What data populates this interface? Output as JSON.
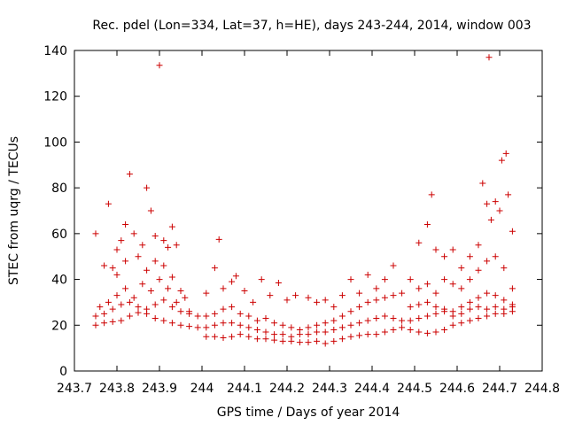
{
  "chart_data": {
    "type": "scatter",
    "title": "Rec. pdel (Lon=334, Lat=37, h=HE), days 243-244, 2014, window 003",
    "xlabel": "GPS time / Days of year 2014",
    "ylabel": "STEC from uqrg / TECUs",
    "xlim": [
      243.7,
      244.8
    ],
    "ylim": [
      0,
      140
    ],
    "xticks": [
      "243.7",
      "243.8",
      "243.9",
      "244",
      "244.1",
      "244.2",
      "244.3",
      "244.4",
      "244.5",
      "244.6",
      "244.7",
      "244.8"
    ],
    "yticks": [
      "0",
      "20",
      "40",
      "60",
      "80",
      "100",
      "120",
      "140"
    ],
    "grid": false,
    "legend": "none",
    "marker": "+",
    "color": "#cc0000",
    "series": [
      {
        "points": [
          [
            243.75,
            60
          ],
          [
            243.77,
            46
          ],
          [
            243.78,
            73
          ],
          [
            243.79,
            45
          ],
          [
            243.8,
            53
          ],
          [
            243.81,
            57
          ],
          [
            243.82,
            64
          ],
          [
            243.83,
            86
          ],
          [
            243.84,
            60
          ],
          [
            243.86,
            55
          ],
          [
            243.87,
            80
          ],
          [
            243.88,
            70
          ],
          [
            243.89,
            59
          ],
          [
            243.9,
            133.5
          ],
          [
            243.91,
            57
          ],
          [
            243.92,
            54
          ],
          [
            243.93,
            63
          ],
          [
            243.94,
            55
          ],
          [
            243.8,
            42
          ],
          [
            243.82,
            48
          ],
          [
            243.85,
            50
          ],
          [
            243.87,
            44
          ],
          [
            243.89,
            48
          ],
          [
            243.91,
            46
          ],
          [
            243.93,
            41
          ],
          [
            243.95,
            35
          ],
          [
            243.76,
            28
          ],
          [
            243.78,
            30
          ],
          [
            243.8,
            33
          ],
          [
            243.82,
            36
          ],
          [
            243.84,
            32
          ],
          [
            243.86,
            38
          ],
          [
            243.88,
            35
          ],
          [
            243.9,
            40
          ],
          [
            243.92,
            36
          ],
          [
            243.94,
            30
          ],
          [
            243.96,
            32
          ],
          [
            243.97,
            26
          ],
          [
            243.75,
            24
          ],
          [
            243.77,
            25
          ],
          [
            243.79,
            27
          ],
          [
            243.81,
            29
          ],
          [
            243.83,
            30
          ],
          [
            243.85,
            28
          ],
          [
            243.87,
            27
          ],
          [
            243.89,
            29
          ],
          [
            243.91,
            31
          ],
          [
            243.93,
            28
          ],
          [
            243.95,
            26
          ],
          [
            243.97,
            25
          ],
          [
            243.99,
            24
          ],
          [
            243.75,
            20
          ],
          [
            243.77,
            21
          ],
          [
            243.79,
            21.5
          ],
          [
            243.81,
            22
          ],
          [
            243.83,
            24
          ],
          [
            243.85,
            25.5
          ],
          [
            243.87,
            25
          ],
          [
            243.89,
            23
          ],
          [
            243.91,
            22
          ],
          [
            243.93,
            21
          ],
          [
            243.95,
            20
          ],
          [
            243.97,
            19.5
          ],
          [
            243.99,
            19
          ],
          [
            244.01,
            34
          ],
          [
            244.03,
            45
          ],
          [
            244.04,
            57.5
          ],
          [
            244.05,
            36
          ],
          [
            244.07,
            39
          ],
          [
            244.08,
            41.5
          ],
          [
            244.1,
            35
          ],
          [
            244.12,
            30
          ],
          [
            244.14,
            40
          ],
          [
            244.16,
            33
          ],
          [
            244.18,
            38.5
          ],
          [
            244.2,
            31
          ],
          [
            244.22,
            33
          ],
          [
            244.25,
            32
          ],
          [
            244.27,
            30
          ],
          [
            244.29,
            31
          ],
          [
            244.31,
            28
          ],
          [
            244.33,
            33
          ],
          [
            244.35,
            40
          ],
          [
            244.37,
            34
          ],
          [
            244.39,
            42
          ],
          [
            244.41,
            36
          ],
          [
            244.43,
            40
          ],
          [
            244.45,
            46
          ],
          [
            244.01,
            24
          ],
          [
            244.03,
            25
          ],
          [
            244.05,
            27
          ],
          [
            244.07,
            28
          ],
          [
            244.09,
            25
          ],
          [
            244.11,
            24
          ],
          [
            244.13,
            22
          ],
          [
            244.15,
            23
          ],
          [
            244.17,
            21
          ],
          [
            244.19,
            20
          ],
          [
            244.21,
            19
          ],
          [
            244.23,
            18
          ],
          [
            244.25,
            19
          ],
          [
            244.27,
            20
          ],
          [
            244.29,
            21
          ],
          [
            244.31,
            22
          ],
          [
            244.33,
            24
          ],
          [
            244.35,
            26
          ],
          [
            244.37,
            28
          ],
          [
            244.39,
            30
          ],
          [
            244.41,
            31
          ],
          [
            244.43,
            32
          ],
          [
            244.45,
            33
          ],
          [
            244.47,
            34
          ],
          [
            244.01,
            19
          ],
          [
            244.03,
            20
          ],
          [
            244.05,
            21
          ],
          [
            244.07,
            21
          ],
          [
            244.09,
            20
          ],
          [
            244.11,
            19
          ],
          [
            244.13,
            18
          ],
          [
            244.15,
            17
          ],
          [
            244.17,
            16
          ],
          [
            244.19,
            16
          ],
          [
            244.21,
            15
          ],
          [
            244.23,
            16
          ],
          [
            244.25,
            16
          ],
          [
            244.27,
            17
          ],
          [
            244.29,
            17
          ],
          [
            244.31,
            18
          ],
          [
            244.33,
            19
          ],
          [
            244.35,
            20
          ],
          [
            244.37,
            21
          ],
          [
            244.39,
            22
          ],
          [
            244.41,
            23
          ],
          [
            244.43,
            24
          ],
          [
            244.45,
            23
          ],
          [
            244.47,
            22
          ],
          [
            244.01,
            15
          ],
          [
            244.03,
            15
          ],
          [
            244.05,
            14.5
          ],
          [
            244.07,
            15
          ],
          [
            244.09,
            16
          ],
          [
            244.11,
            15
          ],
          [
            244.13,
            14
          ],
          [
            244.15,
            14
          ],
          [
            244.17,
            13.5
          ],
          [
            244.19,
            13
          ],
          [
            244.21,
            13
          ],
          [
            244.23,
            12.5
          ],
          [
            244.25,
            12.5
          ],
          [
            244.27,
            13
          ],
          [
            244.29,
            12
          ],
          [
            244.31,
            13
          ],
          [
            244.33,
            14
          ],
          [
            244.35,
            15
          ],
          [
            244.37,
            15.5
          ],
          [
            244.39,
            16
          ],
          [
            244.41,
            16
          ],
          [
            244.43,
            17
          ],
          [
            244.45,
            18
          ],
          [
            244.47,
            19
          ],
          [
            244.49,
            40
          ],
          [
            244.51,
            56
          ],
          [
            244.53,
            64
          ],
          [
            244.54,
            77
          ],
          [
            244.55,
            53
          ],
          [
            244.57,
            50
          ],
          [
            244.59,
            53
          ],
          [
            244.61,
            45
          ],
          [
            244.63,
            50
          ],
          [
            244.65,
            55
          ],
          [
            244.66,
            82
          ],
          [
            244.67,
            73
          ],
          [
            244.675,
            137
          ],
          [
            244.68,
            66
          ],
          [
            244.69,
            74
          ],
          [
            244.7,
            70
          ],
          [
            244.705,
            92
          ],
          [
            244.715,
            95
          ],
          [
            244.72,
            77
          ],
          [
            244.73,
            61
          ],
          [
            244.51,
            36
          ],
          [
            244.53,
            38
          ],
          [
            244.55,
            34
          ],
          [
            244.57,
            40
          ],
          [
            244.59,
            38
          ],
          [
            244.61,
            36
          ],
          [
            244.63,
            40
          ],
          [
            244.65,
            44
          ],
          [
            244.67,
            48
          ],
          [
            244.69,
            50
          ],
          [
            244.71,
            45
          ],
          [
            244.73,
            36
          ],
          [
            244.49,
            28
          ],
          [
            244.51,
            29
          ],
          [
            244.53,
            30
          ],
          [
            244.55,
            28
          ],
          [
            244.57,
            27
          ],
          [
            244.59,
            26
          ],
          [
            244.61,
            28
          ],
          [
            244.63,
            30
          ],
          [
            244.65,
            32
          ],
          [
            244.67,
            34
          ],
          [
            244.69,
            33
          ],
          [
            244.71,
            31
          ],
          [
            244.73,
            29
          ],
          [
            244.49,
            18
          ],
          [
            244.51,
            17
          ],
          [
            244.53,
            16.5
          ],
          [
            244.55,
            17
          ],
          [
            244.57,
            18
          ],
          [
            244.59,
            20
          ],
          [
            244.61,
            21
          ],
          [
            244.63,
            22
          ],
          [
            244.65,
            23
          ],
          [
            244.67,
            24
          ],
          [
            244.69,
            25
          ],
          [
            244.71,
            25
          ],
          [
            244.73,
            26
          ],
          [
            244.49,
            22
          ],
          [
            244.51,
            23
          ],
          [
            244.53,
            24
          ],
          [
            244.55,
            25
          ],
          [
            244.57,
            26
          ],
          [
            244.59,
            24
          ],
          [
            244.61,
            25
          ],
          [
            244.63,
            27
          ],
          [
            244.65,
            28
          ],
          [
            244.67,
            27
          ],
          [
            244.69,
            28
          ],
          [
            244.71,
            27
          ],
          [
            244.73,
            28
          ]
        ]
      }
    ]
  }
}
